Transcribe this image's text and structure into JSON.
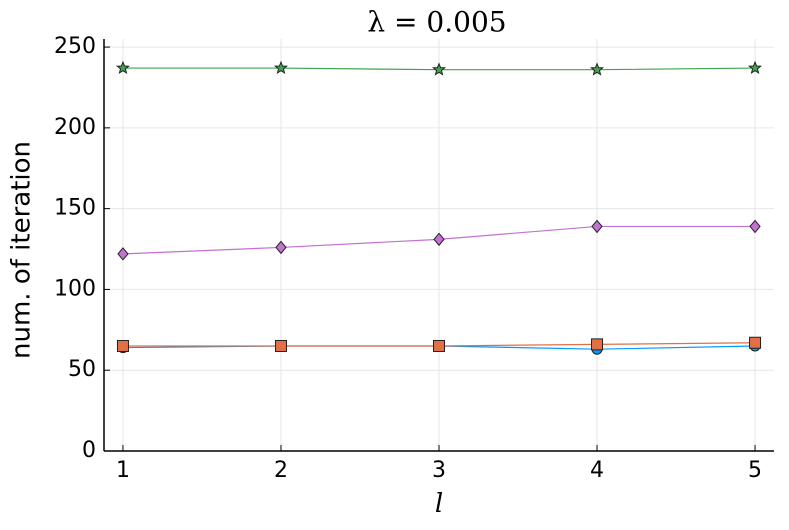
{
  "chart_data": {
    "type": "line",
    "title": "λ = 0.005",
    "x_label": "l",
    "y_label": "num. of iteration",
    "x": [
      1,
      2,
      3,
      4,
      5
    ],
    "xlim": [
      0.88,
      5.12
    ],
    "xticks": [
      1,
      2,
      3,
      4,
      5
    ],
    "ylim": [
      0,
      255
    ],
    "yticks": [
      0,
      50,
      100,
      150,
      200,
      250
    ],
    "grid": true,
    "series": [
      {
        "color": "#009AFA",
        "marker": "circle",
        "values": [
          64,
          65,
          65,
          63,
          65
        ]
      },
      {
        "color": "#E36F47",
        "marker": "square",
        "values": [
          65,
          65,
          65,
          66,
          67
        ]
      },
      {
        "color": "#3EA44E",
        "marker": "star",
        "values": [
          237,
          237,
          236,
          236,
          237
        ]
      },
      {
        "color": "#C371D2",
        "marker": "diamond",
        "values": [
          122,
          126,
          131,
          139,
          139
        ]
      }
    ]
  }
}
